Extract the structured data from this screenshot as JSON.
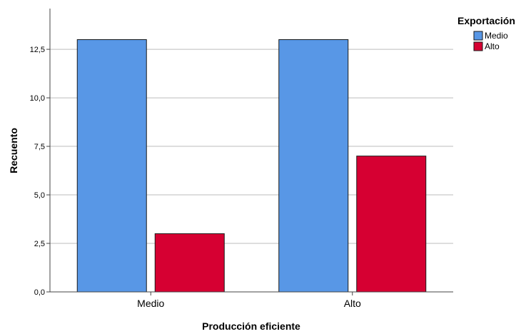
{
  "chart_data": {
    "type": "bar",
    "title": "",
    "xlabel": "Producción eficiente",
    "ylabel": "Recuento",
    "categories": [
      "Medio",
      "Alto"
    ],
    "series": [
      {
        "name": "Medio",
        "values": [
          13,
          13
        ],
        "color": "#5897E6"
      },
      {
        "name": "Alto",
        "values": [
          3,
          7
        ],
        "color": "#D60032"
      }
    ],
    "ylim": [
      0,
      14.6
    ],
    "yticks": [
      "0,0",
      "2,5",
      "5,0",
      "7,5",
      "10,0",
      "12,5"
    ],
    "ytick_values": [
      0,
      2.5,
      5,
      7.5,
      10,
      12.5
    ],
    "legend": {
      "title": "Exportación",
      "position": "top-right"
    },
    "grid": true,
    "gridline_color": "#BDBDBD"
  }
}
